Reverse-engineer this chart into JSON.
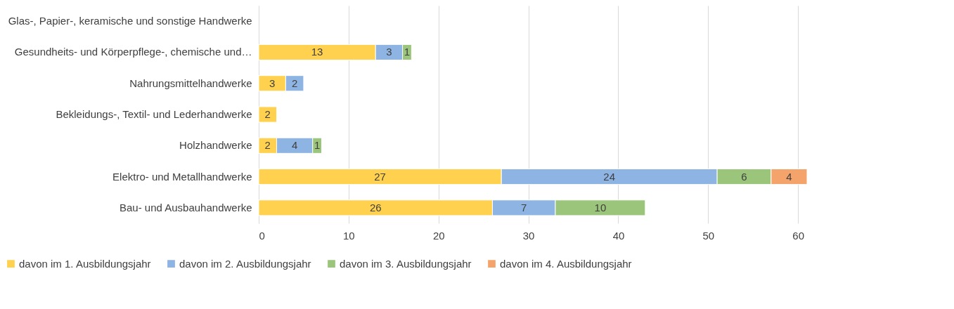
{
  "chart_data": {
    "type": "bar",
    "orientation": "horizontal",
    "stacked": true,
    "data_labels": true,
    "grid": "x",
    "legend": "bottom",
    "categories": [
      "Glas-, Papier-, keramische und sonstige Handwerke",
      "Gesundheits- und Körperpflege-, chemische und…",
      "Nahrungsmittelhandwerke",
      "Bekleidungs-, Textil- und Lederhandwerke",
      "Holzhandwerke",
      "Elektro- und Metallhandwerke",
      "Bau- und Ausbauhandwerke"
    ],
    "xlim": [
      0,
      61
    ],
    "xticks": [
      0,
      10,
      20,
      30,
      40,
      50,
      60
    ],
    "series": [
      {
        "name": "davon im 1. Ausbildungsjahr",
        "color": "#ffd14f",
        "values": [
          null,
          13,
          3,
          2,
          2,
          27,
          26
        ]
      },
      {
        "name": "davon im 2. Ausbildungsjahr",
        "color": "#8db4e2",
        "values": [
          null,
          3,
          2,
          null,
          4,
          24,
          7
        ]
      },
      {
        "name": "davon im 3. Ausbildungsjahr",
        "color": "#9bc57a",
        "values": [
          null,
          1,
          null,
          null,
          1,
          6,
          10
        ]
      },
      {
        "name": "davon im 4. Ausbildungsjahr",
        "color": "#f4a46a",
        "values": [
          null,
          null,
          null,
          null,
          null,
          4,
          null
        ]
      }
    ]
  }
}
